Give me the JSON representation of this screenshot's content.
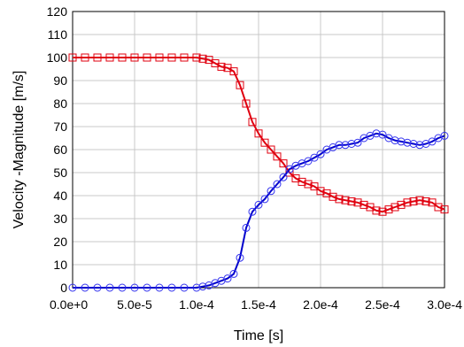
{
  "chart_data": {
    "type": "line",
    "title": "",
    "xlabel": "Time [s]",
    "ylabel": "Velocity -Magnitude [m/s]",
    "xlim": [
      0,
      0.0003
    ],
    "ylim": [
      0,
      120
    ],
    "x_ticks": [
      0,
      5e-05,
      0.0001,
      0.00015,
      0.0002,
      0.00025,
      0.0003
    ],
    "x_tick_labels": [
      "0.0e+0",
      "5.0e-5",
      "1.0e-4",
      "1.5e-4",
      "2.0e-4",
      "2.5e-4",
      "3.0e-4"
    ],
    "y_ticks": [
      0,
      10,
      20,
      30,
      40,
      50,
      60,
      70,
      80,
      90,
      100,
      110,
      120
    ],
    "y_tick_labels": [
      "0",
      "10",
      "20",
      "30",
      "40",
      "50",
      "60",
      "70",
      "80",
      "90",
      "100",
      "110",
      "120"
    ],
    "grid": true,
    "legend": "none",
    "series": [
      {
        "line_color": "#e0000f",
        "marker": "square",
        "marker_color": "#e0000f",
        "x": [
          0,
          1e-05,
          2e-05,
          3e-05,
          4e-05,
          5e-05,
          6e-05,
          7e-05,
          8e-05,
          9e-05,
          0.0001,
          0.000105,
          0.00011,
          0.000115,
          0.00012,
          0.000125,
          0.00013,
          0.000135,
          0.00014,
          0.000145,
          0.00015,
          0.000155,
          0.00016,
          0.000165,
          0.00017,
          0.000175,
          0.00018,
          0.000185,
          0.00019,
          0.000195,
          0.0002,
          0.000205,
          0.00021,
          0.000215,
          0.00022,
          0.000225,
          0.00023,
          0.000235,
          0.00024,
          0.000245,
          0.00025,
          0.000255,
          0.00026,
          0.000265,
          0.00027,
          0.000275,
          0.00028,
          0.000285,
          0.00029,
          0.000295,
          0.0003
        ],
        "y": [
          100,
          100,
          100,
          100,
          100,
          100,
          100,
          100,
          100,
          100,
          100,
          99.5,
          99,
          97.5,
          96,
          95.5,
          94,
          88,
          80,
          72,
          67,
          63,
          60,
          57,
          54,
          50,
          47.5,
          46,
          45,
          44,
          42,
          41,
          39.5,
          38.5,
          38,
          37.5,
          37,
          36,
          35,
          33.5,
          33,
          34,
          35,
          36,
          37,
          37.5,
          38,
          37.5,
          37,
          35,
          34
        ]
      },
      {
        "line_color": "#0000cc",
        "marker": "circle",
        "marker_color": "#3333ee",
        "x": [
          0,
          1e-05,
          2e-05,
          3e-05,
          4e-05,
          5e-05,
          6e-05,
          7e-05,
          8e-05,
          9e-05,
          0.0001,
          0.000105,
          0.00011,
          0.000115,
          0.00012,
          0.000125,
          0.00013,
          0.000135,
          0.00014,
          0.000145,
          0.00015,
          0.000155,
          0.00016,
          0.000165,
          0.00017,
          0.000175,
          0.00018,
          0.000185,
          0.00019,
          0.000195,
          0.0002,
          0.000205,
          0.00021,
          0.000215,
          0.00022,
          0.000225,
          0.00023,
          0.000235,
          0.00024,
          0.000245,
          0.00025,
          0.000255,
          0.00026,
          0.000265,
          0.00027,
          0.000275,
          0.00028,
          0.000285,
          0.00029,
          0.000295,
          0.0003
        ],
        "y": [
          0,
          0,
          0,
          0,
          0,
          0,
          0,
          0,
          0,
          0,
          0,
          0.5,
          1,
          2,
          3,
          4,
          6,
          13,
          26,
          33,
          36,
          38.5,
          42,
          45,
          48,
          51.5,
          53,
          54,
          55,
          56.5,
          58,
          60,
          61,
          62,
          62,
          62.5,
          63,
          65,
          66,
          67,
          66.5,
          65,
          64,
          63.5,
          63,
          62.5,
          62,
          62.5,
          63.5,
          65,
          66
        ]
      }
    ]
  }
}
